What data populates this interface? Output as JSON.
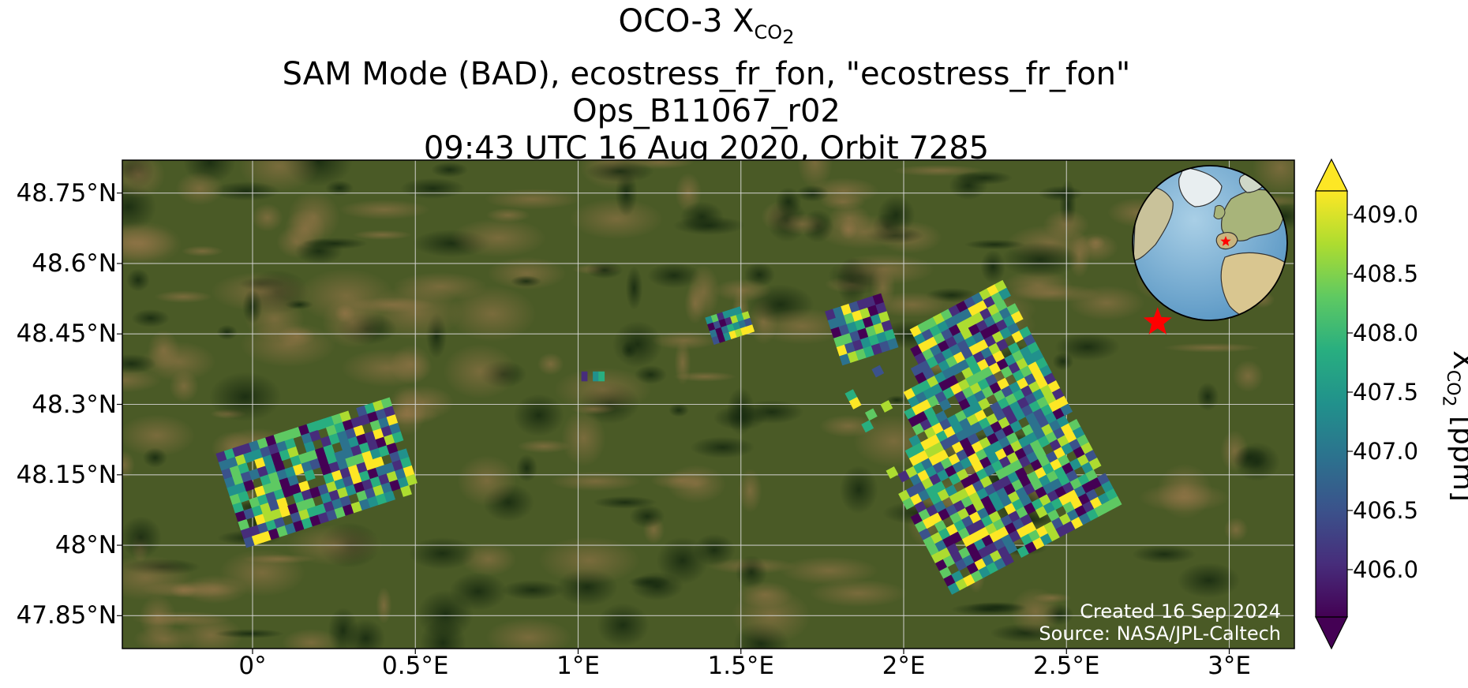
{
  "title": {
    "line1_main": "OCO-3 X",
    "line1_sub": "CO",
    "line1_subsub": "2",
    "line2": "SAM Mode (BAD), ecostress_fr_fon, \"ecostress_fr_fon\"",
    "line3": "Ops_B11067_r02",
    "line4": "09:43 UTC 16 Aug 2020, Orbit 7285"
  },
  "map": {
    "background": "satellite-imagery",
    "lon_range": [
      -0.4,
      3.2
    ],
    "lat_range": [
      47.78,
      48.82
    ],
    "lat_ticks": [
      {
        "value": 48.75,
        "label": "48.75°N"
      },
      {
        "value": 48.6,
        "label": "48.6°N"
      },
      {
        "value": 48.45,
        "label": "48.45°N"
      },
      {
        "value": 48.3,
        "label": "48.3°N"
      },
      {
        "value": 48.15,
        "label": "48.15°N"
      },
      {
        "value": 48.0,
        "label": "48°N"
      },
      {
        "value": 47.85,
        "label": "47.85°N"
      }
    ],
    "lon_ticks": [
      {
        "value": 0.0,
        "label": "0°"
      },
      {
        "value": 0.5,
        "label": "0.5°E"
      },
      {
        "value": 1.0,
        "label": "1°E"
      },
      {
        "value": 1.5,
        "label": "1.5°E"
      },
      {
        "value": 2.0,
        "label": "2°E"
      },
      {
        "value": 2.5,
        "label": "2.5°E"
      },
      {
        "value": 3.0,
        "label": "3°E"
      }
    ],
    "grid": true,
    "target_marker": {
      "icon": "red-star-icon",
      "lon": 2.78,
      "lat": 48.475,
      "color": "#ff0000"
    },
    "inset_globe": {
      "placement": "top-right",
      "marker": "red-star-icon"
    }
  },
  "colorbar": {
    "colormap": "viridis",
    "range": [
      405.6,
      409.2
    ],
    "extend": "both",
    "ticks": [
      {
        "value": 409.0,
        "label": "409.0"
      },
      {
        "value": 408.5,
        "label": "408.5"
      },
      {
        "value": 408.0,
        "label": "408.0"
      },
      {
        "value": 407.5,
        "label": "407.5"
      },
      {
        "value": 407.0,
        "label": "407.0"
      },
      {
        "value": 406.5,
        "label": "406.5"
      },
      {
        "value": 406.0,
        "label": "406.0"
      }
    ],
    "label_main": "X",
    "label_sub": "CO",
    "label_subsub": "2",
    "label_unit": " [ppm]"
  },
  "credits": {
    "created": "Created 16 Sep 2024",
    "source": "Source: NASA/JPL-Caltech"
  },
  "soundings": [
    {
      "name": "swath-west",
      "lon": [
        -0.08,
        0.48
      ],
      "lat": [
        48.05,
        48.26
      ],
      "tilt_deg": -18
    },
    {
      "name": "swath-east",
      "lon": [
        1.93,
        2.52
      ],
      "lat": [
        47.96,
        48.5
      ],
      "tilt_deg": -28
    },
    {
      "name": "cluster-north",
      "lon": [
        1.78,
        1.96
      ],
      "lat": [
        48.4,
        48.52
      ],
      "tilt_deg": -18
    },
    {
      "name": "cluster-small-a",
      "lon": [
        1.4,
        1.53
      ],
      "lat": [
        48.44,
        48.5
      ],
      "tilt_deg": -18
    },
    {
      "name": "cluster-small-b",
      "lon": [
        1.01,
        1.08
      ],
      "lat": [
        48.35,
        48.37
      ],
      "tilt_deg": 0
    }
  ]
}
